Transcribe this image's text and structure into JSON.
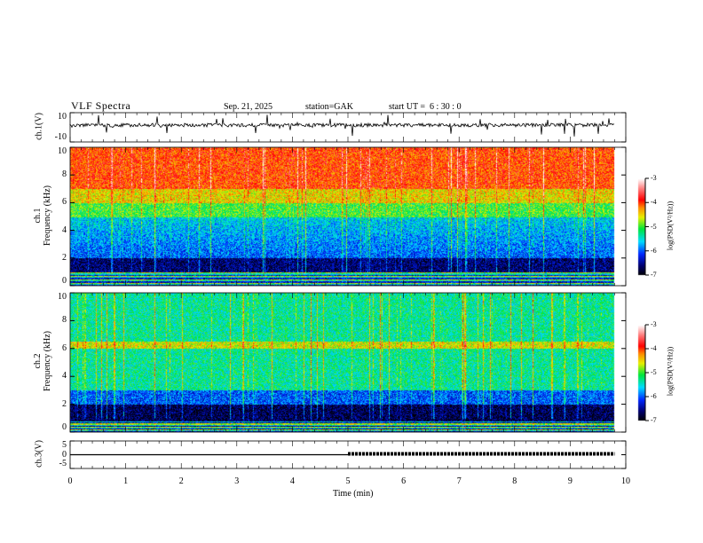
{
  "header": {
    "title": "VLF Spectra",
    "date": "Sep. 21, 2025",
    "station": "station=GAK",
    "start_ut": "start UT =  6 : 30 : 0"
  },
  "chart_data": {
    "type": "heatmap",
    "title": "VLF Spectra",
    "xlabel": "Time (min)",
    "xlim": [
      0,
      10
    ],
    "x_ticks": [
      "0",
      "1",
      "2",
      "3",
      "4",
      "5",
      "6",
      "7",
      "8",
      "9",
      "10"
    ],
    "data_end_min": 9.8,
    "panels": [
      {
        "name": "ch1-waveform",
        "ylabel": "ch.1(V)",
        "ylim": [
          -10,
          10
        ],
        "y_ticks": [
          "10",
          "-10"
        ],
        "type": "line"
      },
      {
        "name": "ch1-spectrogram",
        "ylabel": "ch.1\nFrequency (kHz)",
        "ylabel_lines": [
          "ch.1",
          "Frequency (kHz)"
        ],
        "ylim": [
          0,
          10
        ],
        "y_ticks": [
          "0",
          "2",
          "4",
          "6",
          "8",
          "10"
        ],
        "type": "heatmap",
        "colorbar": {
          "label": "log(PSD(V²/Hz))",
          "range": [
            -7,
            -3
          ],
          "ticks": [
            "-3",
            "-4",
            "-5",
            "-6",
            "-7"
          ]
        },
        "profile_log_psd": [
          {
            "f_khz": [
              0,
              1
            ],
            "value": -5.5
          },
          {
            "f_khz": [
              1,
              2
            ],
            "value": -6.6
          },
          {
            "f_khz": [
              2,
              5
            ],
            "value": -6.0
          },
          {
            "f_khz": [
              5,
              6
            ],
            "value": -5.0
          },
          {
            "f_khz": [
              6,
              7
            ],
            "value": -4.5
          },
          {
            "f_khz": [
              7,
              10
            ],
            "value": -4.0
          }
        ]
      },
      {
        "name": "ch2-spectrogram",
        "ylabel": "ch.2\nFrequency (kHz)",
        "ylabel_lines": [
          "ch.2",
          "Frequency (kHz)"
        ],
        "ylim": [
          0,
          10
        ],
        "y_ticks": [
          "0",
          "2",
          "4",
          "6",
          "8",
          "10"
        ],
        "type": "heatmap",
        "colorbar": {
          "label": "log(PSD(V²/Hz))",
          "range": [
            -7,
            -3
          ],
          "ticks": [
            "-3",
            "-4",
            "-5",
            "-6",
            "-7"
          ]
        },
        "profile_log_psd": [
          {
            "f_khz": [
              0,
              2
            ],
            "value": -6.7
          },
          {
            "f_khz": [
              2,
              3
            ],
            "value": -6.0
          },
          {
            "f_khz": [
              3,
              10
            ],
            "value": -5.3
          },
          {
            "f_khz": [
              6,
              6.5
            ],
            "value": -4.6
          }
        ]
      },
      {
        "name": "ch3-waveform",
        "ylabel": "ch.3(V)",
        "ylim": [
          -5,
          5
        ],
        "y_ticks": [
          "5",
          "0",
          "-5"
        ],
        "type": "line",
        "segments": [
          {
            "t": [
              0,
              5
            ],
            "value": 0,
            "style": "solid"
          },
          {
            "t": [
              5,
              9.8
            ],
            "value": 0,
            "style": "pulsed"
          }
        ]
      }
    ]
  }
}
